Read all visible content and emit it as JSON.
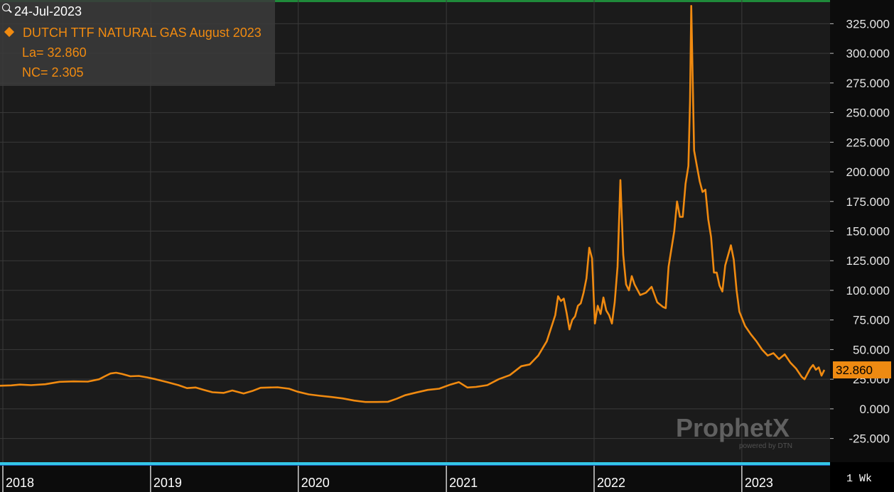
{
  "legend": {
    "date": "24-Jul-2023",
    "series_label": "DUTCH TTF NATURAL GAS August 2023",
    "last_label": "La= 32.860",
    "net_change_label": "NC= 2.305"
  },
  "last_value_label": "32.860",
  "interval_label": "1 Wk",
  "watermark": {
    "brand": "ProphetX",
    "powered_by": "powered by DTN"
  },
  "colors": {
    "series": "#f08a10",
    "last_box": "#ee8a12",
    "background": "#1b1b1b",
    "grid": "#3a3a3a"
  },
  "icons": {
    "magnifier": "magnifier-icon",
    "series_marker": "diamond-icon"
  },
  "chart_data": {
    "type": "line",
    "title": "",
    "xlabel": "",
    "ylabel": "",
    "x_ticks": [
      "2018",
      "2019",
      "2020",
      "2021",
      "2022",
      "2023"
    ],
    "y_ticks": [
      "325.000",
      "300.000",
      "275.000",
      "250.000",
      "225.000",
      "200.000",
      "175.000",
      "150.000",
      "125.000",
      "100.000",
      "75.000",
      "50.000",
      "25.000",
      "0.000",
      "-25.000"
    ],
    "ylim": [
      -45,
      345
    ],
    "xlim": [
      "2017-12-25",
      "2023-08-07"
    ],
    "grid": true,
    "series": [
      {
        "name": "DUTCH TTF NATURAL GAS August 2023",
        "points": [
          [
            "2017-12-25",
            19.5
          ],
          [
            "2018-01-22",
            19.8
          ],
          [
            "2018-02-12",
            20.5
          ],
          [
            "2018-03-12",
            20.0
          ],
          [
            "2018-04-16",
            20.8
          ],
          [
            "2018-05-21",
            22.8
          ],
          [
            "2018-06-25",
            23.2
          ],
          [
            "2018-07-30",
            23.0
          ],
          [
            "2018-08-27",
            25.0
          ],
          [
            "2018-09-10",
            27.5
          ],
          [
            "2018-09-24",
            29.8
          ],
          [
            "2018-10-08",
            30.5
          ],
          [
            "2018-10-22",
            29.5
          ],
          [
            "2018-11-12",
            27.5
          ],
          [
            "2018-12-03",
            27.8
          ],
          [
            "2018-12-24",
            26.5
          ],
          [
            "2019-01-14",
            25.0
          ],
          [
            "2019-02-11",
            22.5
          ],
          [
            "2019-03-11",
            20.0
          ],
          [
            "2019-04-01",
            17.5
          ],
          [
            "2019-04-22",
            18.0
          ],
          [
            "2019-05-13",
            16.0
          ],
          [
            "2019-06-03",
            14.0
          ],
          [
            "2019-07-01",
            13.5
          ],
          [
            "2019-07-22",
            15.5
          ],
          [
            "2019-08-19",
            13.0
          ],
          [
            "2019-09-09",
            15.0
          ],
          [
            "2019-09-30",
            17.8
          ],
          [
            "2019-10-21",
            18.0
          ],
          [
            "2019-11-11",
            18.2
          ],
          [
            "2019-12-09",
            17.0
          ],
          [
            "2019-12-30",
            14.5
          ],
          [
            "2020-01-27",
            12.2
          ],
          [
            "2020-02-24",
            11.0
          ],
          [
            "2020-03-23",
            10.0
          ],
          [
            "2020-04-20",
            8.8
          ],
          [
            "2020-05-18",
            7.0
          ],
          [
            "2020-06-15",
            5.8
          ],
          [
            "2020-07-13",
            5.8
          ],
          [
            "2020-08-10",
            6.0
          ],
          [
            "2020-08-31",
            8.5
          ],
          [
            "2020-09-21",
            11.5
          ],
          [
            "2020-10-19",
            13.8
          ],
          [
            "2020-11-16",
            16.0
          ],
          [
            "2020-12-14",
            17.0
          ],
          [
            "2021-01-11",
            20.5
          ],
          [
            "2021-02-01",
            22.5
          ],
          [
            "2021-02-22",
            18.0
          ],
          [
            "2021-03-15",
            18.5
          ],
          [
            "2021-04-12",
            20.0
          ],
          [
            "2021-05-10",
            25.0
          ],
          [
            "2021-06-07",
            28.5
          ],
          [
            "2021-07-05",
            36.0
          ],
          [
            "2021-07-26",
            37.5
          ],
          [
            "2021-08-16",
            45.0
          ],
          [
            "2021-09-06",
            57.0
          ],
          [
            "2021-09-27",
            79.0
          ],
          [
            "2021-10-04",
            95.0
          ],
          [
            "2021-10-11",
            91.0
          ],
          [
            "2021-10-18",
            93.0
          ],
          [
            "2021-10-25",
            81.0
          ],
          [
            "2021-11-01",
            67.0
          ],
          [
            "2021-11-08",
            75.0
          ],
          [
            "2021-11-15",
            78.0
          ],
          [
            "2021-11-22",
            87.0
          ],
          [
            "2021-11-29",
            89.0
          ],
          [
            "2021-12-06",
            98.0
          ],
          [
            "2021-12-13",
            110.0
          ],
          [
            "2021-12-20",
            136.0
          ],
          [
            "2021-12-27",
            127.0
          ],
          [
            "2022-01-03",
            72.0
          ],
          [
            "2022-01-10",
            87.0
          ],
          [
            "2022-01-17",
            80.0
          ],
          [
            "2022-01-24",
            94.0
          ],
          [
            "2022-01-31",
            83.0
          ],
          [
            "2022-02-07",
            79.0
          ],
          [
            "2022-02-14",
            72.0
          ],
          [
            "2022-02-21",
            90.0
          ],
          [
            "2022-02-28",
            120.0
          ],
          [
            "2022-03-07",
            193.0
          ],
          [
            "2022-03-14",
            130.0
          ],
          [
            "2022-03-21",
            105.0
          ],
          [
            "2022-03-28",
            100.0
          ],
          [
            "2022-04-04",
            112.0
          ],
          [
            "2022-04-11",
            105.0
          ],
          [
            "2022-04-25",
            96.0
          ],
          [
            "2022-05-09",
            98.0
          ],
          [
            "2022-05-23",
            103.0
          ],
          [
            "2022-06-06",
            90.0
          ],
          [
            "2022-06-20",
            86.0
          ],
          [
            "2022-06-27",
            85.0
          ],
          [
            "2022-07-04",
            120.0
          ],
          [
            "2022-07-18",
            150.0
          ],
          [
            "2022-07-25",
            175.0
          ],
          [
            "2022-08-01",
            162.0
          ],
          [
            "2022-08-08",
            162.0
          ],
          [
            "2022-08-15",
            190.0
          ],
          [
            "2022-08-22",
            205.0
          ],
          [
            "2022-08-26",
            260.0
          ],
          [
            "2022-08-29",
            340.0
          ],
          [
            "2022-09-05",
            218.0
          ],
          [
            "2022-09-12",
            205.0
          ],
          [
            "2022-09-19",
            192.0
          ],
          [
            "2022-09-26",
            183.0
          ],
          [
            "2022-10-03",
            185.0
          ],
          [
            "2022-10-10",
            160.0
          ],
          [
            "2022-10-17",
            145.0
          ],
          [
            "2022-10-24",
            115.0
          ],
          [
            "2022-10-31",
            115.0
          ],
          [
            "2022-11-07",
            104.0
          ],
          [
            "2022-11-14",
            99.0
          ],
          [
            "2022-11-21",
            121.0
          ],
          [
            "2022-12-05",
            138.0
          ],
          [
            "2022-12-12",
            126.0
          ],
          [
            "2022-12-19",
            100.0
          ],
          [
            "2022-12-26",
            82.0
          ],
          [
            "2023-01-09",
            70.0
          ],
          [
            "2023-01-23",
            63.0
          ],
          [
            "2023-02-06",
            57.0
          ],
          [
            "2023-02-20",
            50.0
          ],
          [
            "2023-03-06",
            45.0
          ],
          [
            "2023-03-20",
            47.0
          ],
          [
            "2023-04-03",
            42.0
          ],
          [
            "2023-04-17",
            46.0
          ],
          [
            "2023-05-01",
            39.0
          ],
          [
            "2023-05-15",
            34.0
          ],
          [
            "2023-05-29",
            27.0
          ],
          [
            "2023-06-05",
            25.0
          ],
          [
            "2023-06-19",
            34.0
          ],
          [
            "2023-06-26",
            37.0
          ],
          [
            "2023-07-03",
            33.0
          ],
          [
            "2023-07-10",
            35.0
          ],
          [
            "2023-07-17",
            28.0
          ],
          [
            "2023-07-24",
            32.86
          ]
        ]
      }
    ],
    "last_value": 32.86,
    "net_change": 2.305,
    "last_date": "2023-07-24"
  }
}
